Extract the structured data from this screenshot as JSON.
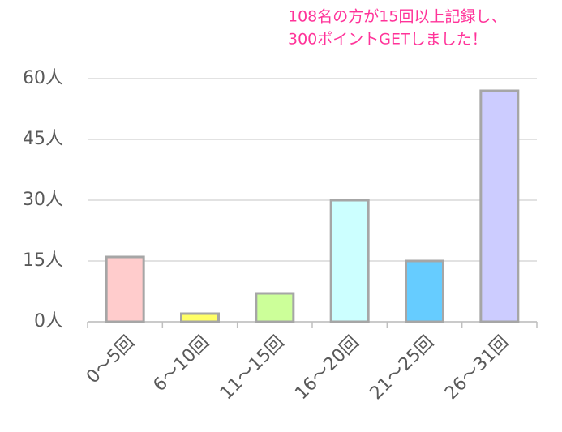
{
  "chart_data": {
    "type": "bar",
    "annotation": [
      "108名の方が15回以上記録し、",
      "300ポイントGETしました！"
    ],
    "categories": [
      "0～5回",
      "6～10回",
      "11～15回",
      "16～20回",
      "21～25回",
      "26～31回"
    ],
    "values": [
      16,
      2,
      7,
      30,
      15,
      57
    ],
    "colors": [
      "#ffcccc",
      "#ffff66",
      "#ccff99",
      "#ccffff",
      "#66ccff",
      "#ccccff"
    ],
    "ylim": [
      0,
      60
    ],
    "yticks": [
      {
        "value": 0,
        "label": "0人"
      },
      {
        "value": 15,
        "label": "15人"
      },
      {
        "value": 30,
        "label": "30人"
      },
      {
        "value": 45,
        "label": "45人"
      },
      {
        "value": 60,
        "label": "60人"
      }
    ],
    "grid": true
  }
}
